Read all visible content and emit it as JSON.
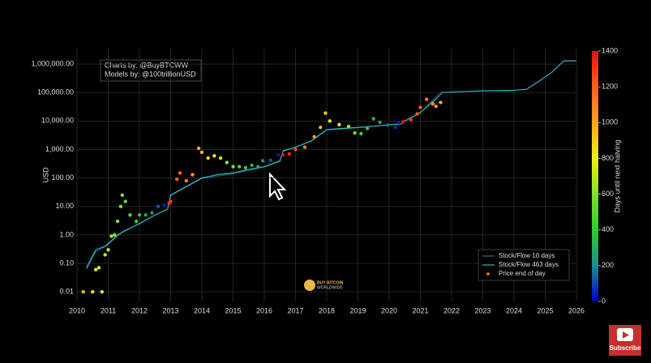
{
  "chart_data": {
    "type": "scatter",
    "ylabel": "USD",
    "annotations": [
      "Charts by: @BuyBTCWW",
      "Models by: @100trillionUSD"
    ],
    "xlim": [
      2010,
      2026
    ],
    "xticks": [
      2010,
      2011,
      2012,
      2013,
      2014,
      2015,
      2016,
      2017,
      2018,
      2019,
      2020,
      2021,
      2022,
      2023,
      2024,
      2025,
      2026
    ],
    "ylim": [
      0.0046,
      3500000
    ],
    "yscale": "log",
    "yticks": [
      0.01,
      {
        "value": 0.1,
        "label": "0.10"
      },
      {
        "value": 1,
        "label": "1.00"
      },
      {
        "value": 10,
        "label": "10.00"
      },
      {
        "value": 100,
        "label": "100.00"
      },
      {
        "value": 1000,
        "label": "1,000.00"
      },
      {
        "value": 10000,
        "label": "10,000.00"
      },
      {
        "value": 100000,
        "label": "100,000.00"
      },
      {
        "value": 1000000,
        "label": "1,000,000.00"
      }
    ],
    "grid": true,
    "legend": "bottom-right",
    "colorbar": {
      "title": "Days until next halving",
      "lim": [
        0,
        1400
      ],
      "ticks": [
        0,
        200,
        400,
        600,
        800,
        1000,
        1200,
        1400
      ],
      "colors": [
        "#0000c8",
        "#1e8c8c",
        "#2ecc2e",
        "#80e030",
        "#f0f020",
        "#ffa020",
        "#ff6020",
        "#e01010"
      ]
    },
    "series": [
      {
        "name": "Stock/Flow 10 days",
        "type": "line",
        "color": "#2a6f7a",
        "x": [
          2010.3,
          2010.6,
          2011.0,
          2011.5,
          2012.0,
          2012.5,
          2012.9,
          2013.0,
          2013.5,
          2014.0,
          2015.0,
          2016.0,
          2016.5,
          2016.6,
          2017.5,
          2018.0,
          2019.0,
          2020.0,
          2020.4,
          2020.5,
          2021.0,
          2021.6
        ],
        "values": [
          0.06,
          0.25,
          0.45,
          1.4,
          2.4,
          5,
          8,
          24,
          48,
          95,
          140,
          240,
          380,
          850,
          1900,
          4800,
          5800,
          7300,
          7900,
          9800,
          19000,
          95000
        ]
      },
      {
        "name": "Stock/Flow 463 days",
        "type": "line",
        "color": "#2fb6c6",
        "x": [
          2010.3,
          2010.6,
          2010.9,
          2011.3,
          2011.6,
          2012.0,
          2012.5,
          2012.9,
          2013.0,
          2013.5,
          2014.0,
          2014.5,
          2015.0,
          2015.5,
          2016.0,
          2016.5,
          2016.6,
          2017.0,
          2017.5,
          2018.0,
          2018.5,
          2019.0,
          2019.5,
          2020.0,
          2020.4,
          2020.5,
          2021.0,
          2021.5,
          2021.7,
          2022.5,
          2023.0,
          2024.0,
          2024.4,
          2024.8,
          2025.2,
          2025.6,
          2026.0
        ],
        "values": [
          0.07,
          0.3,
          0.4,
          1,
          1.5,
          2.5,
          5,
          8,
          25,
          50,
          100,
          130,
          150,
          200,
          250,
          400,
          900,
          1200,
          2000,
          5000,
          5500,
          6000,
          6500,
          7500,
          8000,
          10000,
          20000,
          60000,
          100000,
          110000,
          115000,
          120000,
          130000,
          250000,
          500000,
          1300000,
          1300000
        ]
      },
      {
        "name": "Price end of day",
        "type": "scatter",
        "color": "#ff8c00",
        "x": [
          2010.2,
          2010.5,
          2010.8,
          2010.6,
          2010.7,
          2010.9,
          2011.0,
          2011.1,
          2011.2,
          2011.3,
          2011.4,
          2011.45,
          2011.55,
          2011.7,
          2011.9,
          2012.0,
          2012.2,
          2012.4,
          2012.6,
          2012.8,
          2012.95,
          2013.0,
          2013.2,
          2013.3,
          2013.5,
          2013.7,
          2013.9,
          2014.0,
          2014.2,
          2014.4,
          2014.6,
          2014.8,
          2015.0,
          2015.2,
          2015.4,
          2015.6,
          2015.8,
          2015.95,
          2016.2,
          2016.45,
          2016.6,
          2016.8,
          2017.0,
          2017.3,
          2017.6,
          2017.8,
          2017.96,
          2018.1,
          2018.4,
          2018.7,
          2018.9,
          2019.1,
          2019.3,
          2019.5,
          2019.7,
          2019.95,
          2020.2,
          2020.3,
          2020.45,
          2020.7,
          2020.9,
          2021.0,
          2021.2,
          2021.4,
          2021.5,
          2021.65
        ],
        "values": [
          0.01,
          0.01,
          0.01,
          0.06,
          0.07,
          0.2,
          0.3,
          0.9,
          1,
          3,
          10,
          25,
          15,
          5,
          3,
          5,
          5,
          6,
          10,
          11,
          13,
          15,
          90,
          150,
          80,
          130,
          1100,
          800,
          500,
          600,
          500,
          350,
          250,
          250,
          230,
          280,
          250,
          400,
          420,
          650,
          650,
          700,
          1000,
          1200,
          2800,
          6000,
          19000,
          10000,
          7500,
          6500,
          3800,
          3600,
          5500,
          12000,
          9000,
          7200,
          6000,
          9000,
          9500,
          11000,
          18000,
          30000,
          58000,
          40000,
          33000,
          45000
        ],
        "color_values": [
          950,
          850,
          760,
          780,
          770,
          720,
          700,
          660,
          640,
          620,
          590,
          570,
          540,
          490,
          420,
          380,
          280,
          200,
          115,
          40,
          1300,
          1290,
          1220,
          1180,
          1100,
          1030,
          970,
          940,
          870,
          800,
          720,
          650,
          570,
          480,
          420,
          330,
          260,
          210,
          120,
          30,
          1400,
          1330,
          1250,
          1120,
          1030,
          960,
          900,
          840,
          760,
          640,
          560,
          460,
          390,
          310,
          240,
          150,
          60,
          20,
          1390,
          1300,
          1220,
          1190,
          1120,
          1050,
          1020,
          980
        ]
      }
    ]
  },
  "overlay": {
    "logo": [
      "BUY BITCOIN",
      "WORLDWIDE"
    ],
    "subscribe": "Subscribe"
  }
}
